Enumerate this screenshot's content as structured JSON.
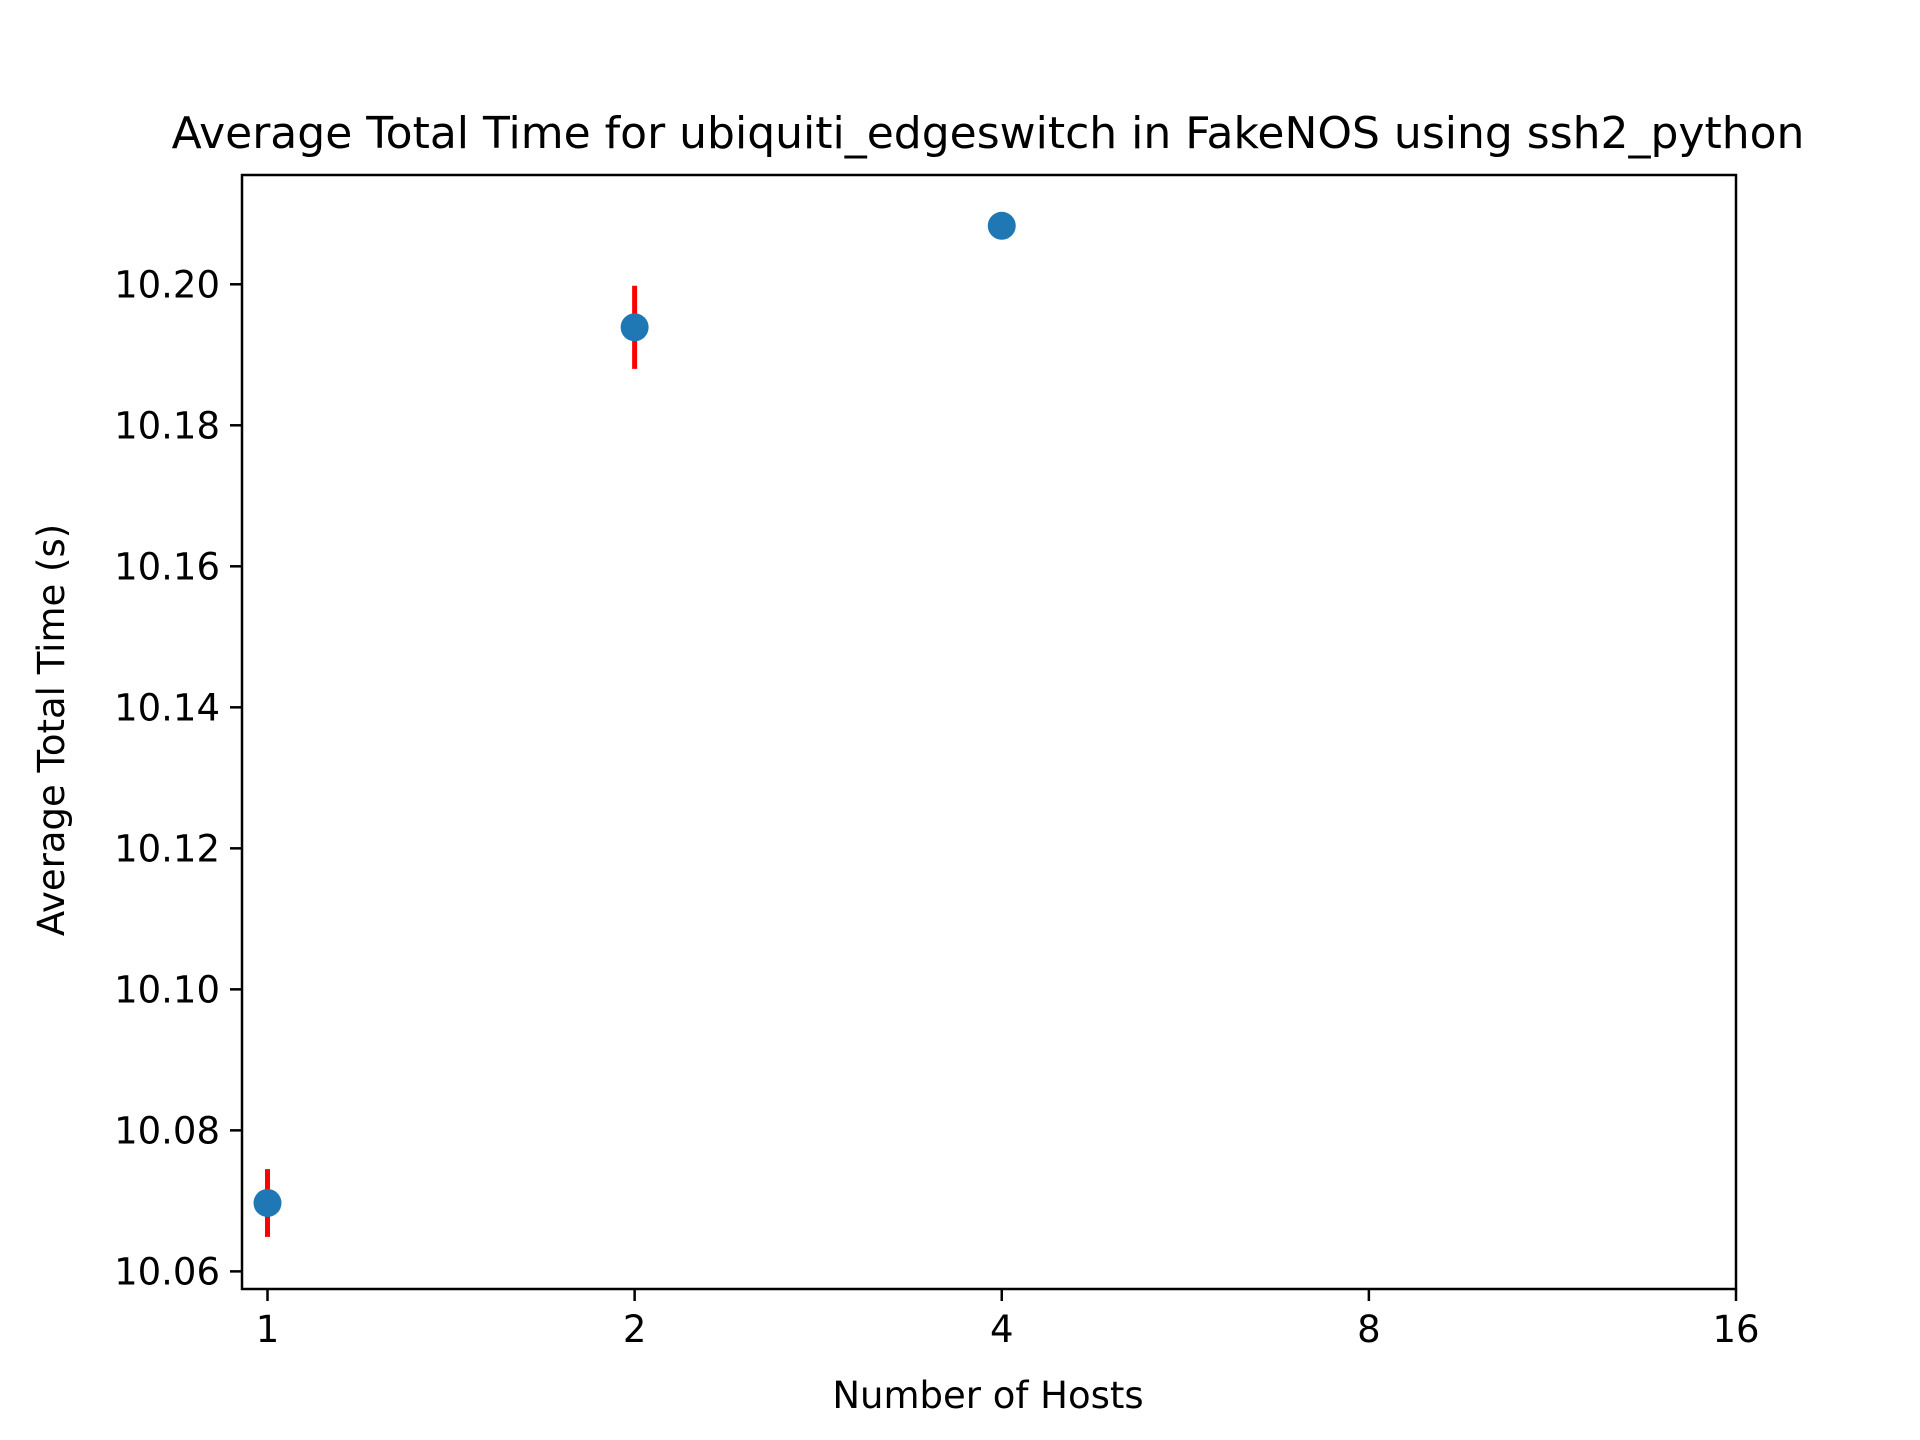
{
  "chart_data": {
    "type": "scatter",
    "title": "Average Total Time for ubiquiti_edgeswitch in FakeNOS using ssh2_python",
    "xlabel": "Number of Hosts",
    "ylabel": "Average Total Time (s)",
    "x_scale": "log2",
    "xlim": [
      0.953,
      16
    ],
    "ylim": [
      10.0575,
      10.2155
    ],
    "x_ticks": [
      1,
      2,
      4,
      8,
      16
    ],
    "x_tick_labels": [
      "1",
      "2",
      "4",
      "8",
      "16"
    ],
    "y_ticks": [
      10.06,
      10.08,
      10.1,
      10.12,
      10.14,
      10.16,
      10.18,
      10.2
    ],
    "y_tick_labels": [
      "10.06",
      "10.08",
      "10.10",
      "10.12",
      "10.14",
      "10.16",
      "10.18",
      "10.20"
    ],
    "grid": false,
    "series": [
      {
        "x": [
          1,
          2,
          4
        ],
        "y": [
          10.0697,
          10.1939,
          10.2083
        ],
        "error": [
          0.0048,
          0.0059,
          0.0
        ]
      }
    ],
    "colors": {
      "marker": "#1f77b4",
      "errorbar": "#ff0000",
      "axes": "#000000"
    }
  }
}
